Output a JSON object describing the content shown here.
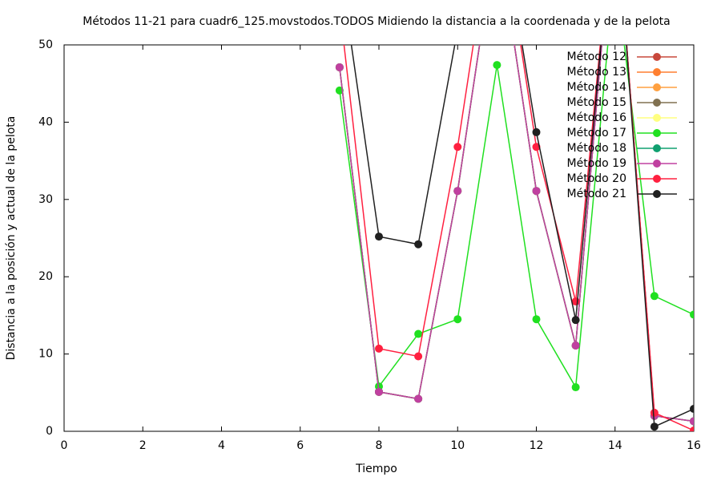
{
  "chart_data": {
    "type": "line",
    "title": "Métodos 11-21 para cuadr6_125.movstodos.TODOS Midiendo la distancia a la coordenada y de la pelota",
    "x_label": "Tiempo",
    "y_label": "Distancia a la posición y actual de la pelota",
    "x": [
      7,
      8,
      9,
      10,
      11,
      12,
      13,
      14,
      15,
      16
    ],
    "series": [
      {
        "name": "Método 12",
        "color": "#c8483c",
        "values": [
          47.1,
          5.1,
          4.2,
          31.1,
          65,
          31.1,
          11.1,
          70,
          2.0,
          1.3
        ]
      },
      {
        "name": "Método 13",
        "color": "#ff7f30",
        "values": [
          47.1,
          5.1,
          4.2,
          31.1,
          65,
          31.1,
          11.1,
          70,
          2.0,
          1.3
        ]
      },
      {
        "name": "Método 14",
        "color": "#ffa040",
        "values": [
          47.1,
          5.1,
          4.2,
          31.1,
          65,
          31.1,
          11.1,
          70,
          2.0,
          1.3
        ]
      },
      {
        "name": "Método 15",
        "color": "#807050",
        "values": [
          47.1,
          5.1,
          4.2,
          31.1,
          65,
          31.1,
          11.1,
          70,
          2.0,
          1.3
        ]
      },
      {
        "name": "Método 16",
        "color": "#ffff80",
        "values": [
          47.1,
          5.1,
          4.2,
          31.1,
          65,
          31.1,
          11.1,
          70,
          2.0,
          1.3
        ]
      },
      {
        "name": "Método 17",
        "color": "#20e020",
        "values": [
          44.1,
          5.8,
          12.6,
          14.5,
          47.4,
          14.5,
          5.7,
          60,
          17.5,
          15.1
        ]
      },
      {
        "name": "Método 18",
        "color": "#10a070",
        "values": [
          47.1,
          5.1,
          4.2,
          31.1,
          65,
          31.1,
          11.1,
          70,
          2.0,
          1.3
        ]
      },
      {
        "name": "Método 19",
        "color": "#c040a0",
        "values": [
          47.1,
          5.1,
          4.2,
          31.1,
          65,
          31.1,
          11.1,
          70,
          2.0,
          1.3
        ]
      },
      {
        "name": "Método 20",
        "color": "#ff2040",
        "values": [
          55,
          10.7,
          9.7,
          36.8,
          70,
          36.8,
          16.8,
          70,
          2.4,
          0.1
        ]
      },
      {
        "name": "Método 21",
        "color": "#202020",
        "values": [
          60.6,
          25.2,
          24.2,
          52,
          70,
          38.7,
          14.4,
          70,
          0.6,
          2.9
        ]
      }
    ],
    "xlim": [
      0,
      16
    ],
    "xticks": [
      0,
      2,
      4,
      6,
      8,
      10,
      12,
      14,
      16
    ],
    "ylim": [
      0,
      50
    ],
    "yticks": [
      0,
      10,
      20,
      30,
      40,
      50
    ],
    "grid": false,
    "legend": "top-right"
  }
}
